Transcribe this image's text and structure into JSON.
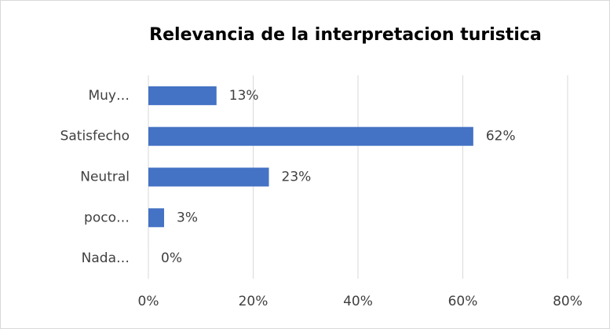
{
  "chart_data": {
    "type": "bar",
    "title": "Relevancia de la interpretacion turistica",
    "categories": [
      "Muy…",
      "Satisfecho",
      "Neutral",
      "poco…",
      "Nada…"
    ],
    "values": [
      13,
      62,
      23,
      3,
      0
    ],
    "value_labels": [
      "13%",
      "62%",
      "23%",
      "3%",
      "0%"
    ],
    "color": "#4472c4",
    "xlim": [
      0,
      80
    ],
    "xticks": [
      {
        "value": 0,
        "label": "0%"
      },
      {
        "value": 20,
        "label": "20%"
      },
      {
        "value": 40,
        "label": "40%"
      },
      {
        "value": 60,
        "label": "60%"
      },
      {
        "value": 80,
        "label": "80%"
      }
    ],
    "grid": true
  }
}
